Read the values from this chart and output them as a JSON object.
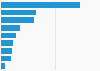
{
  "values": [
    29.0,
    13.0,
    12.0,
    7.0,
    5.5,
    4.5,
    4.0,
    3.5,
    1.5
  ],
  "bar_color": "#2196d3",
  "background_color": "#f9f9f9",
  "grid_color": "#dddddd",
  "n_bars": 9
}
